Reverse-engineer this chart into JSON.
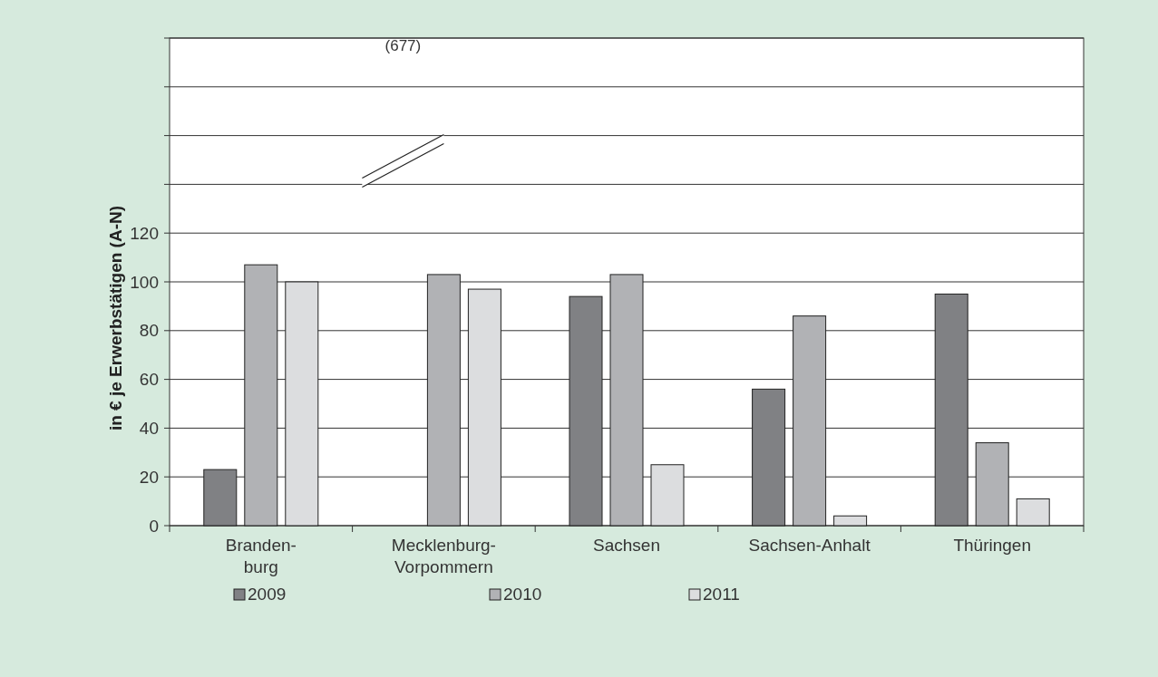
{
  "chart_data": {
    "type": "bar",
    "ylabel": "in € je Erwerbstätigen (A-N)",
    "categories": [
      "Branden-\nburg",
      "Mecklenburg-\nVorpommern",
      "Sachsen",
      "Sachsen-Anhalt",
      "Thüringen"
    ],
    "series": [
      {
        "name": "2009",
        "color": "#808184",
        "values": [
          23,
          null,
          94,
          56,
          95
        ]
      },
      {
        "name": "2010",
        "color": "#b1b2b5",
        "values": [
          107,
          103,
          103,
          86,
          34
        ]
      },
      {
        "name": "2011",
        "color": "#dcdddf",
        "values": [
          100,
          97,
          25,
          4,
          11
        ]
      }
    ],
    "ylim": [
      0,
      200
    ],
    "yticks": [
      0,
      20,
      40,
      60,
      80,
      100,
      120,
      {
        "value": 140,
        "label": null
      },
      {
        "value": 160,
        "label": null
      },
      {
        "value": 180,
        "label": null
      },
      {
        "value": 200,
        "label": null
      }
    ],
    "annotations": [
      "(677)"
    ],
    "grid": "y",
    "legend": "bottom"
  }
}
